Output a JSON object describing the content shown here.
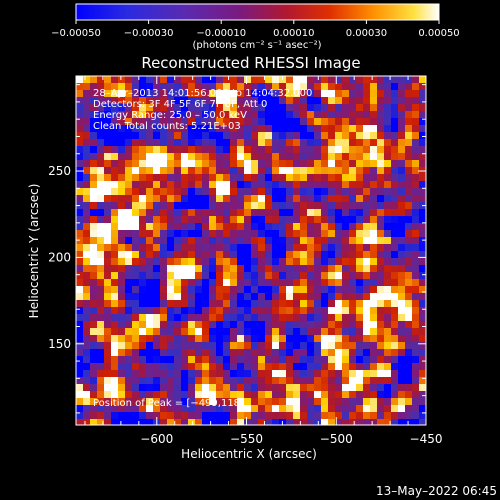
{
  "chart_data": {
    "type": "heatmap",
    "title": "Reconstructed RHESSI Image",
    "xlabel": "Heliocentric X (arcsec)",
    "ylabel": "Heliocentric Y (arcsec)",
    "xlim": [
      -645,
      -450
    ],
    "ylim": [
      103,
      305
    ],
    "x_ticks": [
      -600,
      -550,
      -500,
      -450
    ],
    "y_ticks": [
      150,
      200,
      250
    ],
    "colorbar": {
      "range": [
        -0.0005,
        0.0005
      ],
      "ticks": [
        -0.0005,
        -0.0003,
        -0.0001,
        0.0001,
        0.0003,
        0.0005
      ],
      "tick_labels": [
        "−0.00050",
        "−0.00030",
        "−0.00010",
        "0.00010",
        "0.00030",
        "0.00050"
      ],
      "unit": "(photons cm⁻² s⁻¹ asec⁻²)"
    },
    "annotations": [
      "28–Apr–2013 14:01:56.000 to 14:04:32.000",
      "Detectors: 3F 4F 5F 6F 7F 8F, Att 0",
      "Energy Range: 25.0 – 50.0 keV",
      "Clean     Total counts: 5.21E+03"
    ],
    "peak_label": "Position of Peak = [−499,118]",
    "peak_position": [
      -499,
      118
    ],
    "date_stamp": "13–May–2022 06:45"
  },
  "colors": {
    "background": "#000000",
    "foreground": "#ffffff",
    "colormap": [
      "#0000ff",
      "#3030c8",
      "#5a2a9c",
      "#7a1c80",
      "#a01840",
      "#d02000",
      "#f07000",
      "#ffd000",
      "#ffffff"
    ]
  }
}
